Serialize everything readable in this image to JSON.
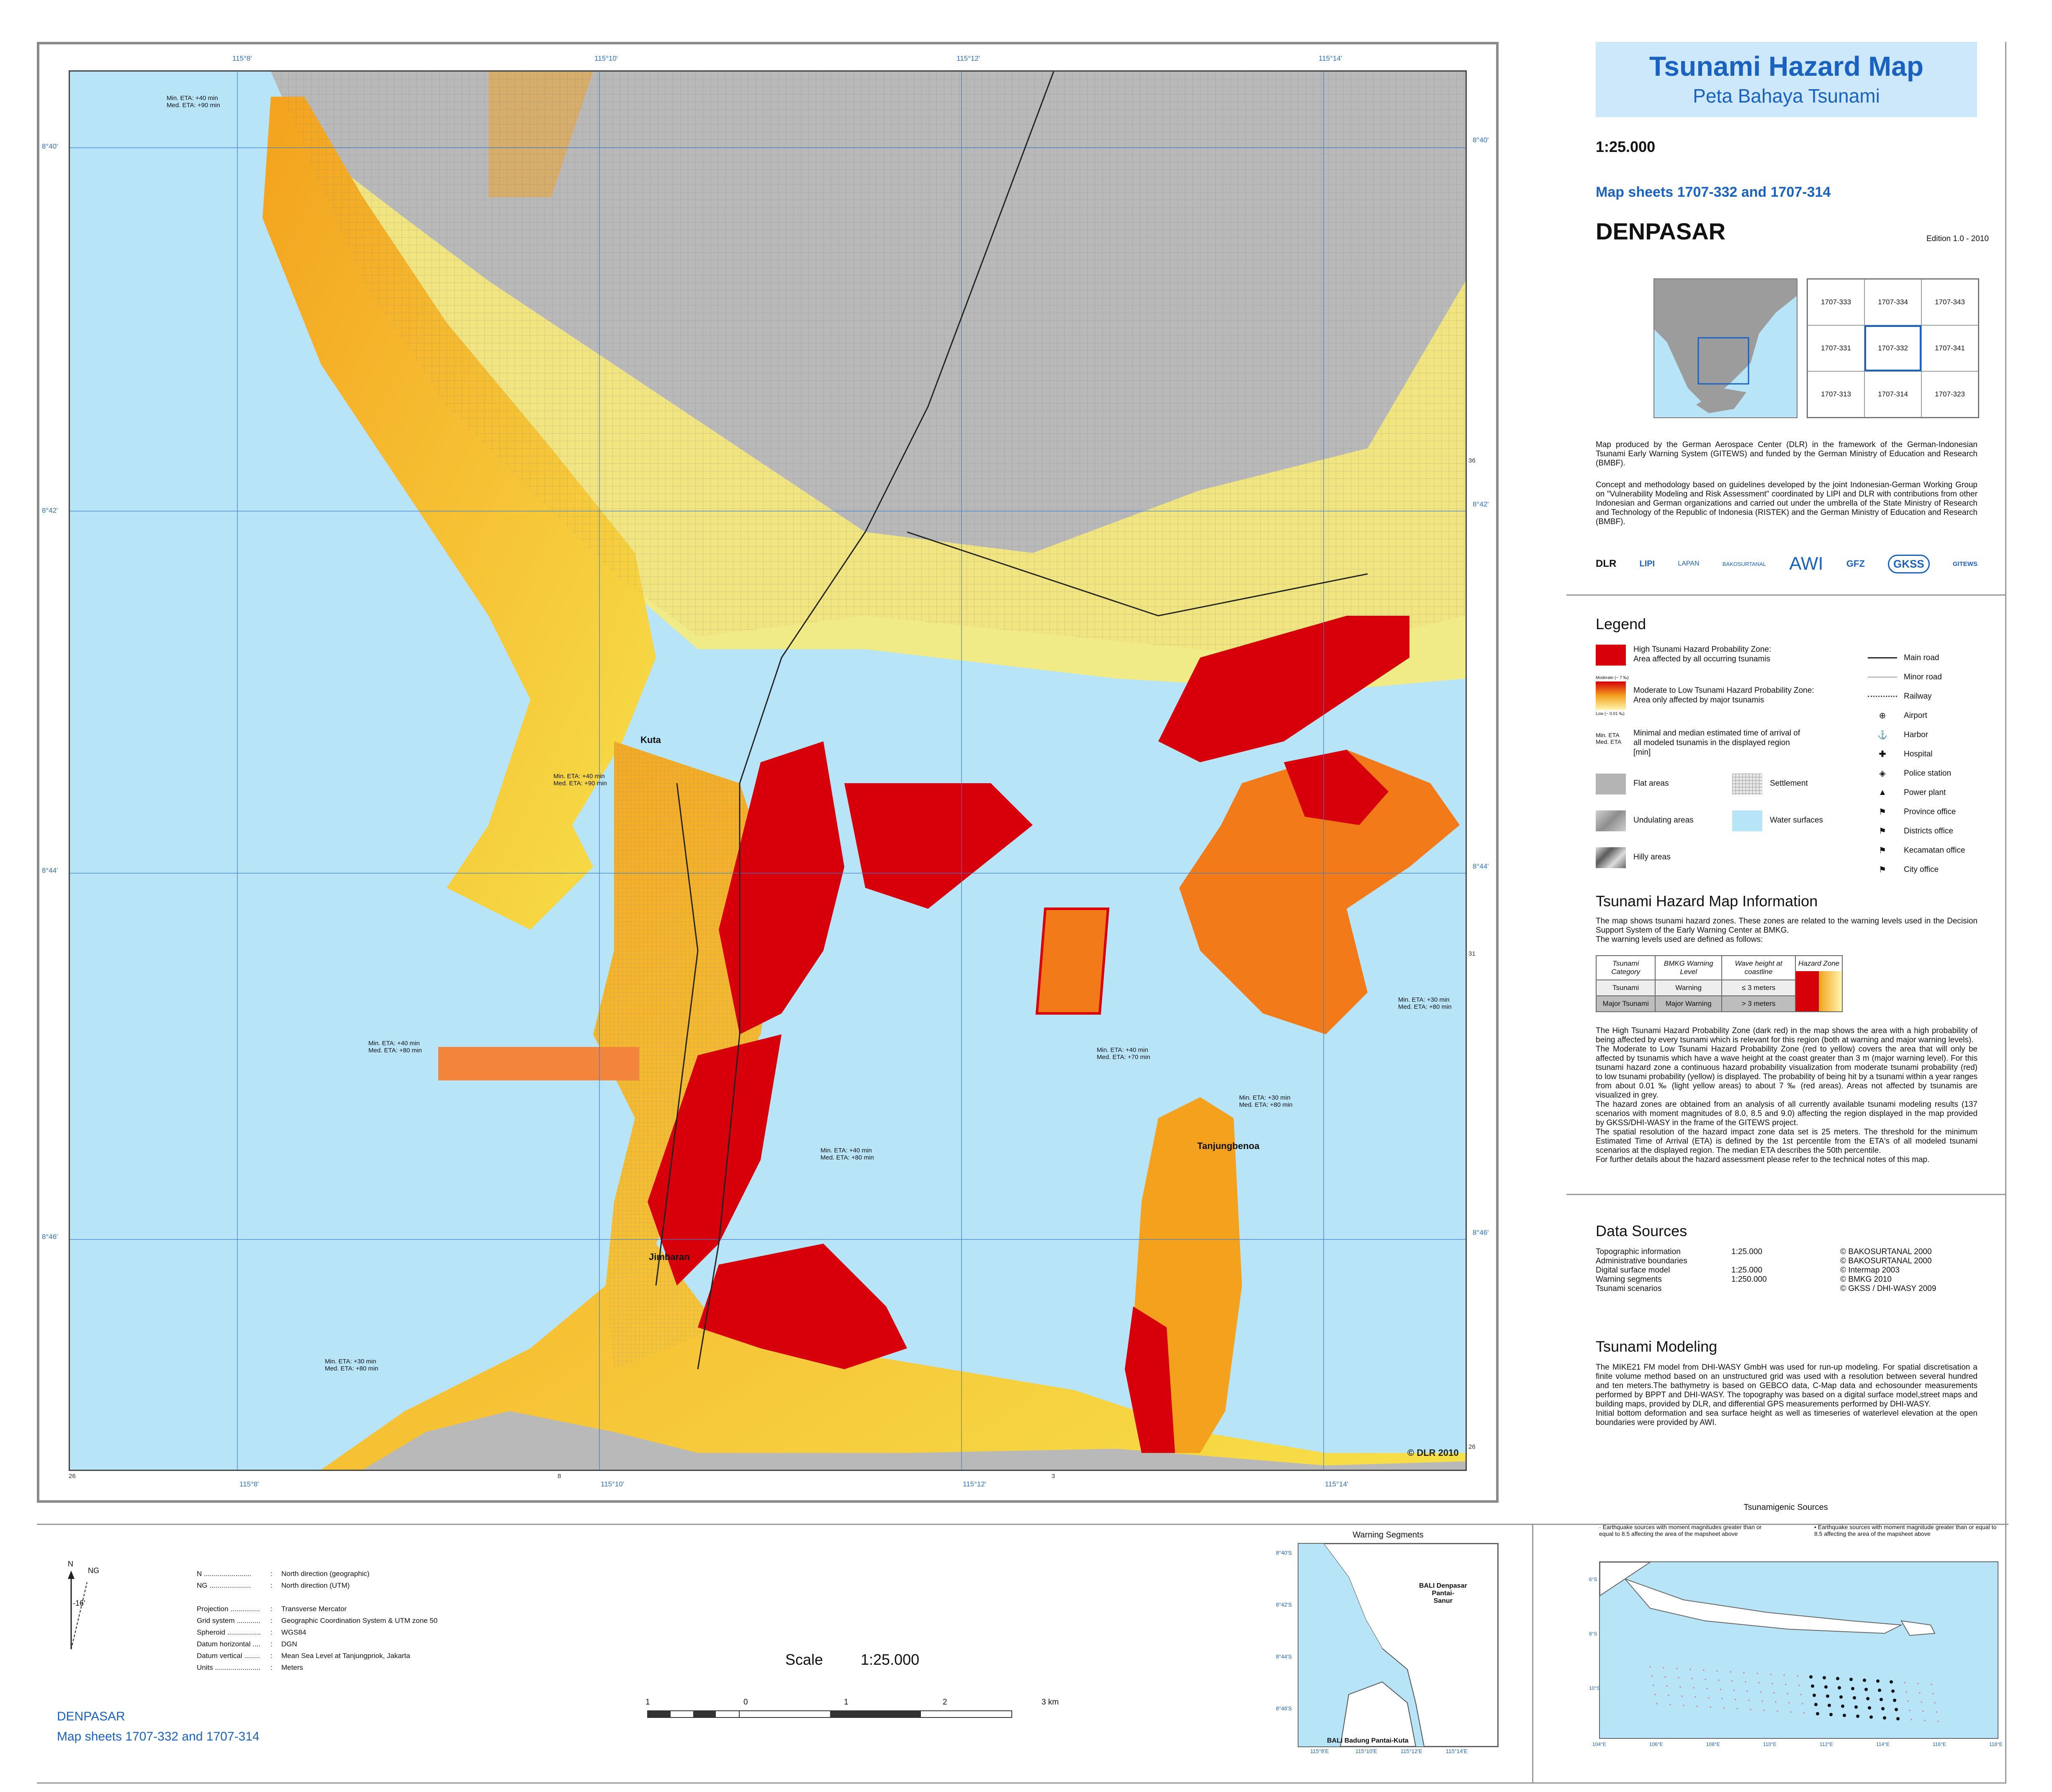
{
  "title": {
    "main": "Tsunami Hazard Map",
    "sub": "Peta Bahaya Tsunami"
  },
  "scale_text": "1:25.000",
  "map_sheets": "Map sheets 1707-332 and 1707-314",
  "city": "DENPASAR",
  "edition": "Edition 1.0   -   2010",
  "index_grid": [
    "1707-333",
    "1707-334",
    "1707-343",
    "1707-331",
    "1707-332",
    "1707-341",
    "1707-313",
    "1707-314",
    "1707-323"
  ],
  "credits": {
    "p1": "Map produced by the German Aerospace Center (DLR) in the framework of the German-Indonesian Tsunami Early Warning System (GITEWS) and funded by the German Ministry of Education and Research (BMBF).",
    "p2": "Concept and methodology based on guidelines developed by the joint Indonesian-German Working Group on \"Vulnerability Modeling and Risk Assessment\" coordinated by LIPI and DLR with contributions from other Indonesian and German organizations and carried out under the umbrella of the State Ministry of Research and Technology of the Republic of Indonesia (RISTEK) and the German Ministry of Education and Research (BMBF)."
  },
  "logos": [
    "DLR",
    "LIPI",
    "LAPAN",
    "BAKOSURTANAL",
    "AWI",
    "GFZ",
    "GKSS",
    "GITEWS"
  ],
  "legend": {
    "heading": "Legend",
    "high": "High Tsunami Hazard Probability Zone:\nArea affected by all occurring tsunamis",
    "moderate": "Moderate to Low Tsunami Hazard Probability Zone:\nArea only affected by major tsunamis",
    "moderate_top": "Moderate (~ 7 ‰)",
    "moderate_bottom": "Low (~ 0.01 ‰)",
    "eta_label": "Min. ETA\nMed. ETA",
    "eta_desc": "Minimal and median estimated time of arrival of all modeled tsunamis in the displayed region [min]",
    "flat": "Flat areas",
    "settlement": "Settlement",
    "undulating": "Undulating areas",
    "water": "Water surfaces",
    "hilly": "Hilly areas",
    "lines": [
      {
        "icon": "main-road",
        "label": "Main road"
      },
      {
        "icon": "minor-road",
        "label": "Minor road"
      },
      {
        "icon": "railway",
        "label": "Railway"
      },
      {
        "icon": "airport-icon",
        "label": "Airport"
      },
      {
        "icon": "harbor-icon",
        "label": "Harbor"
      },
      {
        "icon": "hospital-icon",
        "label": "Hospital"
      },
      {
        "icon": "police-icon",
        "label": "Police station"
      },
      {
        "icon": "power-plant-icon",
        "label": "Power plant"
      },
      {
        "icon": "province-office-icon",
        "label": "Province office"
      },
      {
        "icon": "district-office-icon",
        "label": "Districts office"
      },
      {
        "icon": "kecamatan-office-icon",
        "label": "Kecamatan office"
      },
      {
        "icon": "city-office-icon",
        "label": "City office"
      }
    ],
    "colors": {
      "high": "#d7000a",
      "flat": "#b4b4b4",
      "water": "#b8e4f8",
      "settlement": "#e8e8e8"
    }
  },
  "info": {
    "heading": "Tsunami Hazard Map Information",
    "intro": "The map shows tsunami hazard zones. These zones are related to the warning levels used in the Decision Support System of the Early Warning Center at BMKG.\nThe warning levels used are defined as follows:",
    "table_headers": [
      "Tsunami Category",
      "BMKG Warning Level",
      "Wave height at coastline",
      "Hazard Zone"
    ],
    "table_rows": [
      [
        "Tsunami",
        "Warning",
        "≤ 3 meters"
      ],
      [
        "Major Tsunami",
        "Major Warning",
        "> 3 meters"
      ]
    ],
    "body": "The High Tsunami Hazard Probability Zone (dark red) in the map shows the area with a high probability of being affected by every tsunami which is relevant for this region (both at warning and major warning levels).\nThe Moderate to Low Tsunami Hazard Probability Zone (red to yellow) covers the area that will only be affected by tsunamis which have a wave height at the coast greater than 3 m (major warning level). For this tsunami hazard zone a continuous hazard probability visualization from moderate tsunami probability (red) to low tsunami probability (yellow) is displayed. The probability of being hit by a tsunami within a year ranges from about 0.01 ‰ (light yellow areas) to about 7 ‰ (red areas). Areas not affected by tsunamis are visualized in grey.\nThe hazard zones are obtained from an analysis of all currently available tsunami modeling results (137 scenarios with moment magnitudes of 8.0, 8.5 and 9.0) affecting the region displayed in the map provided by GKSS/DHI-WASY in the frame of the GITEWS project.\nThe spatial resolution of the hazard impact zone data set is 25 meters. The threshold for the minimum Estimated Time of Arrival (ETA) is defined by the 1st percentile from the ETA's of all modeled tsunami scenarios at the displayed region. The median ETA describes the 50th percentile.\nFor further details about the hazard assessment please refer to the technical notes of this map."
  },
  "data_sources": {
    "heading": "Data Sources",
    "rows": [
      [
        "Topographic information",
        "1:25.000",
        "© BAKOSURTANAL 2000"
      ],
      [
        "Administrative boundaries",
        "",
        "© BAKOSURTANAL 2000"
      ],
      [
        "Digital surface model",
        "1:25.000",
        "© Intermap 2003"
      ],
      [
        "Warning segments",
        "1:250.000",
        "© BMKG 2010"
      ],
      [
        "Tsunami scenarios",
        "",
        "© GKSS / DHI-WASY 2009"
      ]
    ]
  },
  "modeling": {
    "heading": "Tsunami Modeling",
    "body": "The MIKE21 FM model from DHI-WASY GmbH was used for run-up modeling. For spatial discretisation a finite volume method based on an unstructured grid was used with a resolution between several hundred and ten meters.The bathymetry is based on GEBCO data, C-Map data and echosounder measurements performed by BPPT and DHI-WASY. The topography was based on a digital surface model,street maps and building maps, provided by DLR, and differential GPS measurements performed by DHI-WASY.\nInitial bottom deformation and sea surface height as well as timeseries of waterlevel elevation at the open boundaries were provided by AWI."
  },
  "map_labels": {
    "top_ticks": [
      "115°8'",
      "115°10'",
      "115°12'",
      "115°14'"
    ],
    "left_ticks": [
      "8°40'",
      "8°42'",
      "8°44'",
      "8°46'"
    ],
    "utm_right": [
      "36",
      "31",
      "26"
    ],
    "utm_bottom": [
      "26",
      "8",
      "3"
    ],
    "places": [
      "Kuta",
      "Jimbaran",
      "Tanjungbenoa"
    ],
    "copyright": "© DLR 2010",
    "etas": [
      "Min. ETA: +40 min\nMed. ETA: +90 min",
      "Min. ETA: +40 min\nMed. ETA: +90 min",
      "Min. ETA: +40 min\nMed. ETA: +80 min",
      "Min. ETA: +40 min\nMed. ETA: +80 min",
      "Min. ETA: +40 min\nMed. ETA: +70 min",
      "Min. ETA: +30 min\nMed. ETA: +80 min",
      "Min. ETA: +30 min\nMed. ETA: +80 min",
      "Min. ETA: +30 min\nMed. ETA: +80 min"
    ]
  },
  "projection": {
    "rows": [
      [
        "N ........................",
        "North direction (geographic)"
      ],
      [
        "NG .....................",
        "North direction (UTM)"
      ],
      [
        "",
        ""
      ],
      [
        "Projection ...............",
        "Transverse Mercator"
      ],
      [
        "Grid system ............",
        "Geographic Coordination System & UTM zone 50"
      ],
      [
        "Spheroid .................",
        "WGS84"
      ],
      [
        "Datum horizontal ....",
        "DGN"
      ],
      [
        "Datum vertical ........",
        "Mean Sea Level at Tanjungpriok, Jakarta"
      ],
      [
        "Units .......................",
        "Meters"
      ]
    ],
    "north_n": "N",
    "north_ng": "NG",
    "north_angle": "-16'"
  },
  "scale": {
    "label": "Scale",
    "value": "1:25.000",
    "ticks": [
      "1",
      "0",
      "1",
      "2",
      "3 km"
    ]
  },
  "footer": {
    "city": "DENPASAR",
    "sheets": "Map sheets 1707-332 and 1707-314"
  },
  "warning_segments": {
    "title": "Warning Segments",
    "seg1": "BALI Denpasar\nPantai-\nSanur",
    "seg2": "BALI Badung Pantai-Kuta",
    "lat_ticks": [
      "8°40'S",
      "8°42'S",
      "8°44'S",
      "8°46'S"
    ],
    "lon_ticks": [
      "115°8'E",
      "115°10'E",
      "115°12'E",
      "115°14'E"
    ]
  },
  "tsunamigenic": {
    "title": "Tsunamigenic Sources",
    "legend_small": "Earthquake sources with moment magnitudes greater than or equal to 8.5 affecting the area of the mapsheet above",
    "legend_big": "Earthquake sources with moment magnitude greater than or equal to 8.5 affecting the area of the mapsheet above",
    "lon_ticks": [
      "104°E",
      "106°E",
      "108°E",
      "110°E",
      "112°E",
      "114°E",
      "116°E",
      "118°E"
    ],
    "lat_ticks": [
      "6°S",
      "8°S",
      "10°S"
    ]
  }
}
